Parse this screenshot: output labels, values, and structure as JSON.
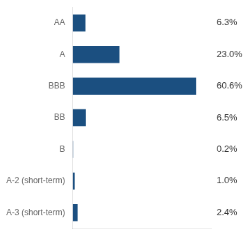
{
  "chart_data": {
    "type": "bar",
    "orientation": "horizontal",
    "categories": [
      "AA",
      "A",
      "BBB",
      "BB",
      "B",
      "A-2 (short-term)",
      "A-3 (short-term)"
    ],
    "values": [
      6.3,
      23.0,
      60.6,
      6.5,
      0.2,
      1.0,
      2.4
    ],
    "value_labels": [
      "6.3%",
      "23.0%",
      "60.6%",
      "6.5%",
      "0.2%",
      "1.0%",
      "2.4%"
    ],
    "color": "#1b4f80",
    "xlim": [
      0,
      68
    ],
    "tick_labels": "y",
    "data_labels": true,
    "grid": false
  }
}
